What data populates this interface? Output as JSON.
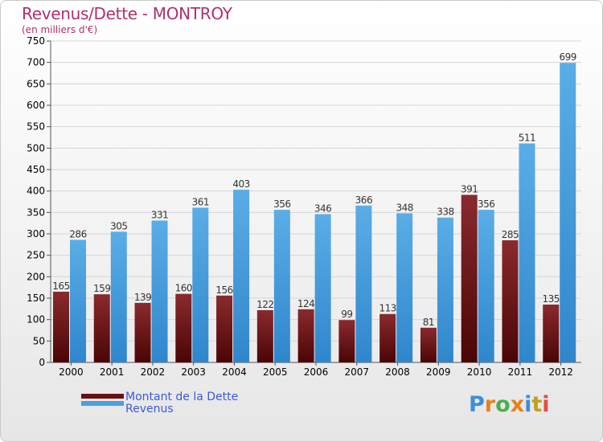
{
  "header": {
    "title": "Revenus/Dette - MONTROY",
    "subtitle": "(en milliers d'€)"
  },
  "legend": {
    "items": [
      {
        "label": "Montant de la Dette",
        "color": "#6b0f0f"
      },
      {
        "label": "Revenus",
        "color": "#4aa0e0"
      }
    ]
  },
  "logo": {
    "text": "Proxiti",
    "letter_colors": [
      "#3d8fd8",
      "#e8811c",
      "#4caf50",
      "#e8811c",
      "#3d8fd8",
      "#c0a020",
      "#e64b3c"
    ]
  },
  "colors": {
    "dette_top": "#8a2a2e",
    "dette_bottom": "#4a0505",
    "revenus_top": "#5aade6",
    "revenus_bottom": "#2f86cc",
    "grid": "#d6d6d6",
    "axis_text": "#000000",
    "label_text": "#333333"
  },
  "chart_data": {
    "type": "bar",
    "title": "Revenus/Dette - MONTROY",
    "subtitle": "(en milliers d'€)",
    "categories": [
      "2000",
      "2001",
      "2002",
      "2003",
      "2004",
      "2005",
      "2006",
      "2007",
      "2008",
      "2009",
      "2010",
      "2011",
      "2012"
    ],
    "series": [
      {
        "name": "Montant de la Dette",
        "values": [
          165,
          159,
          139,
          160,
          156,
          122,
          124,
          99,
          113,
          81,
          391,
          285,
          135
        ]
      },
      {
        "name": "Revenus",
        "values": [
          286,
          305,
          331,
          361,
          403,
          356,
          346,
          366,
          348,
          338,
          356,
          511,
          699
        ]
      }
    ],
    "ylim": [
      0,
      750
    ],
    "yticks": [
      0,
      50,
      100,
      150,
      200,
      250,
      300,
      350,
      400,
      450,
      500,
      550,
      600,
      650,
      700,
      750
    ],
    "grid": true,
    "legend_position": "bottom-left"
  }
}
